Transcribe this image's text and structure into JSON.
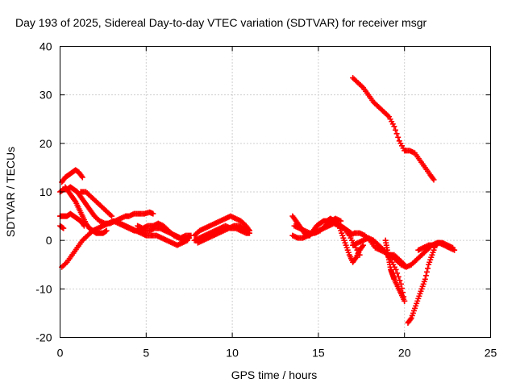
{
  "chart_data": {
    "type": "scatter",
    "title": "Day 193 of 2025, Sidereal Day-to-day VTEC variation (SDTVAR) for receiver msgr",
    "xlabel": "GPS time / hours",
    "ylabel": "SDTVAR / TECUs",
    "xlim": [
      0,
      25
    ],
    "ylim": [
      -20,
      40
    ],
    "xticks": [
      0,
      5,
      10,
      15,
      20,
      25
    ],
    "yticks": [
      -20,
      -10,
      0,
      10,
      20,
      30,
      40
    ],
    "grid": true,
    "color": "#ff0000",
    "marker": "plus",
    "series": [
      {
        "x": [
          0.1,
          0.3,
          0.5,
          0.7,
          0.9,
          1.1,
          1.3
        ],
        "y": [
          12,
          13,
          13.5,
          14,
          14.5,
          14,
          13
        ]
      },
      {
        "x": [
          0,
          0.2,
          0.4,
          0.6,
          0.8,
          1.0,
          1.2,
          1.4,
          1.6,
          1.8,
          2.0,
          2.3,
          2.6,
          2.9,
          3.2,
          3.5,
          3.8,
          4.0,
          4.3,
          4.6,
          4.9,
          5.2,
          5.4
        ],
        "y": [
          10,
          10.5,
          10.5,
          11,
          10.5,
          10,
          9,
          8,
          7,
          6,
          5,
          4,
          3.5,
          3.5,
          4,
          4.5,
          5,
          5,
          5.5,
          5.5,
          5.5,
          5.8,
          5.5
        ]
      },
      {
        "x": [
          0,
          0.2,
          0.4,
          0.6,
          0.8,
          1.0,
          1.2,
          1.4
        ],
        "y": [
          5,
          5,
          5,
          5.5,
          5,
          4.5,
          4,
          3
        ]
      },
      {
        "x": [
          0,
          0.2
        ],
        "y": [
          3,
          2.5
        ]
      },
      {
        "x": [
          0.3,
          0.5,
          0.7,
          0.9,
          1.1,
          1.3,
          1.5,
          1.7,
          1.9,
          2.1,
          2.3,
          2.5,
          2.7
        ],
        "y": [
          11,
          10,
          9,
          8,
          6.5,
          5,
          3.5,
          2.5,
          2,
          1.5,
          1.5,
          1.5,
          2
        ]
      },
      {
        "x": [
          0.1,
          0.4,
          0.7,
          1.0,
          1.3,
          1.6,
          1.9,
          2.2,
          2.5,
          2.8,
          3.1,
          3.4,
          3.7,
          4.0,
          4.3,
          4.6,
          4.9,
          5.2,
          5.5,
          5.8,
          6.1,
          6.4,
          6.7,
          7.0,
          7.3,
          7.6
        ],
        "y": [
          -5.5,
          -4.5,
          -3,
          -1.5,
          0,
          1,
          2,
          2.5,
          3,
          3.5,
          4,
          3.5,
          3,
          2.5,
          2,
          2,
          2,
          2,
          2.5,
          2.5,
          2,
          1.5,
          1,
          0.5,
          1,
          1
        ]
      },
      {
        "x": [
          1.2,
          1.5,
          1.8,
          2.1,
          2.4,
          2.7,
          3.0
        ],
        "y": [
          10,
          10,
          9,
          8,
          7,
          6,
          5
        ]
      },
      {
        "x": [
          3.5,
          3.8,
          4.1,
          4.4,
          4.7,
          5.0,
          5.3,
          5.6,
          5.9,
          6.2,
          6.5,
          6.8,
          7.1,
          7.4
        ],
        "y": [
          3.5,
          3,
          2.5,
          2,
          1.5,
          1,
          1,
          1,
          0.5,
          0,
          -0.5,
          -1,
          -0.5,
          0
        ]
      },
      {
        "x": [
          4.5,
          4.8,
          5.1,
          5.4,
          5.7,
          6.0,
          6.3,
          6.6,
          6.9,
          7.2,
          7.5
        ],
        "y": [
          3,
          2.5,
          3,
          3,
          3.5,
          3,
          2,
          1,
          0.5,
          0,
          0.5
        ]
      },
      {
        "x": [
          7.8,
          8.1,
          8.4,
          8.7,
          9.0,
          9.3,
          9.6,
          9.9,
          10.2,
          10.5,
          10.8,
          11.0
        ],
        "y": [
          0,
          0.5,
          1,
          1.5,
          2,
          2.5,
          3,
          2.5,
          2.5,
          2,
          1.5,
          1.5
        ]
      },
      {
        "x": [
          7.8,
          8.1,
          8.4,
          8.7,
          9.0,
          9.3,
          9.6,
          9.9,
          10.2,
          10.5,
          10.8,
          11.0
        ],
        "y": [
          1,
          2,
          2.5,
          3,
          3.5,
          4,
          4.5,
          5,
          4.5,
          4,
          3,
          2
        ]
      },
      {
        "x": [
          8.0,
          8.3,
          8.6,
          8.9,
          9.2,
          9.5,
          9.8,
          10.1,
          10.4,
          10.7,
          11.0
        ],
        "y": [
          -0.5,
          0,
          0.5,
          1,
          1.5,
          2,
          2.5,
          3,
          3,
          2.5,
          2
        ]
      },
      {
        "x": [
          13.5,
          13.7,
          13.9,
          14.1,
          14.3,
          14.5,
          14.7,
          14.9,
          15.1,
          15.3,
          15.5,
          15.7,
          15.9,
          16.1,
          16.3,
          16.5,
          16.7,
          16.9
        ],
        "y": [
          5,
          4,
          3,
          2,
          1,
          1,
          2,
          3,
          3.5,
          4,
          4,
          4.5,
          4,
          3.5,
          3,
          2.5,
          2,
          1.5
        ]
      },
      {
        "x": [
          13.5,
          13.8,
          14.1,
          14.4,
          14.7,
          15.0,
          15.3,
          15.6,
          15.9,
          16.2,
          16.5,
          16.8,
          17.1,
          17.4
        ],
        "y": [
          1,
          0.5,
          0.5,
          1,
          1.5,
          2,
          2.5,
          3,
          3.5,
          3,
          2.5,
          1,
          -1,
          -3
        ]
      },
      {
        "x": [
          13.6,
          13.9,
          14.2,
          14.5,
          14.8,
          15.1,
          15.4,
          15.7,
          16.0,
          16.3
        ],
        "y": [
          3,
          2.5,
          2,
          1.5,
          1.5,
          2,
          3,
          4,
          4.5,
          4
        ]
      },
      {
        "x": [
          16.2,
          16.4,
          16.6,
          16.8,
          17.0,
          17.2,
          17.4,
          17.6
        ],
        "y": [
          3,
          1,
          -1,
          -3,
          -4.5,
          -3.5,
          -2,
          -1
        ]
      },
      {
        "x": [
          16.8,
          17.1,
          17.4,
          17.7,
          18.0,
          18.3,
          18.6,
          18.9,
          19.2,
          19.5,
          19.8,
          20.0
        ],
        "y": [
          1,
          1.5,
          1.5,
          1,
          0,
          -1.5,
          -2,
          -2.5,
          -4,
          -6,
          -9,
          -12.5
        ]
      },
      {
        "x": [
          17.0,
          17.3,
          17.6,
          17.9,
          18.2,
          18.5,
          18.8,
          19.1,
          19.4,
          19.7,
          20.0
        ],
        "y": [
          -1,
          -0.5,
          0,
          0.5,
          0,
          -1,
          -2,
          -3,
          -3,
          -4,
          -5
        ]
      },
      {
        "x": [
          18.9,
          19.0,
          19.1,
          19.2,
          19.3,
          19.4,
          19.6,
          19.8,
          20.0
        ],
        "y": [
          0,
          -2,
          -4,
          -6,
          -7,
          -8,
          -9.5,
          -11,
          -12.5
        ]
      },
      {
        "x": [
          19.2,
          19.5,
          19.8,
          20.1,
          20.4,
          20.7,
          21.0,
          21.3,
          21.6,
          21.9,
          22.2,
          22.5,
          22.8
        ],
        "y": [
          -3,
          -4,
          -5,
          -5.5,
          -5,
          -4,
          -3,
          -2,
          -1,
          -0.5,
          -0.5,
          -1,
          -1.5
        ]
      },
      {
        "x": [
          20.2,
          20.4,
          20.6,
          20.8,
          21.0,
          21.2,
          21.4,
          21.6,
          21.8,
          22.0
        ],
        "y": [
          -17,
          -16,
          -14,
          -12,
          -10,
          -8,
          -5,
          -3,
          -1,
          -0.5
        ]
      },
      {
        "x": [
          20.8,
          21.1,
          21.4,
          21.7,
          22.0,
          22.3,
          22.6,
          22.9
        ],
        "y": [
          -2,
          -1.5,
          -1,
          -1,
          -0.5,
          -1,
          -1.5,
          -2
        ]
      },
      {
        "x": [
          17.0,
          17.3,
          17.6,
          17.9,
          18.2,
          18.5,
          18.8,
          19.1,
          19.4,
          19.7,
          20.0,
          20.3,
          20.6,
          20.9,
          21.2,
          21.5,
          21.7
        ],
        "y": [
          33.5,
          32.5,
          31.5,
          30,
          28.5,
          27.5,
          26.5,
          25.5,
          23.5,
          20.5,
          18.5,
          18.5,
          18,
          16.5,
          15,
          13.5,
          12.5
        ]
      }
    ]
  }
}
